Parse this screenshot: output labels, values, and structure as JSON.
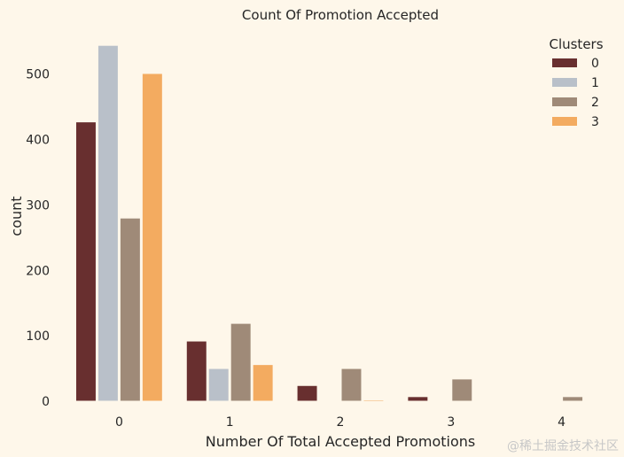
{
  "chart_data": {
    "type": "bar",
    "title": "Count Of Promotion Accepted",
    "xlabel": "Number Of Total Accepted Promotions",
    "ylabel": "count",
    "categories": [
      "0",
      "1",
      "2",
      "3",
      "4"
    ],
    "ylim": [
      0,
      570
    ],
    "yticks": [
      0,
      100,
      200,
      300,
      400,
      500
    ],
    "grid": false,
    "legend": {
      "title": "Clusters",
      "placement": "top-right"
    },
    "series": [
      {
        "name": "0",
        "color": "#682F2F",
        "values": [
          427,
          92,
          24,
          7,
          0
        ]
      },
      {
        "name": "1",
        "color": "#B9C0C9",
        "values": [
          544,
          50,
          0,
          0,
          0
        ]
      },
      {
        "name": "2",
        "color": "#9F8A78",
        "values": [
          280,
          119,
          50,
          34,
          7
        ]
      },
      {
        "name": "3",
        "color": "#F3AB60",
        "values": [
          501,
          56,
          2,
          0,
          0
        ]
      }
    ]
  },
  "watermark": "@稀土掘金技术社区"
}
